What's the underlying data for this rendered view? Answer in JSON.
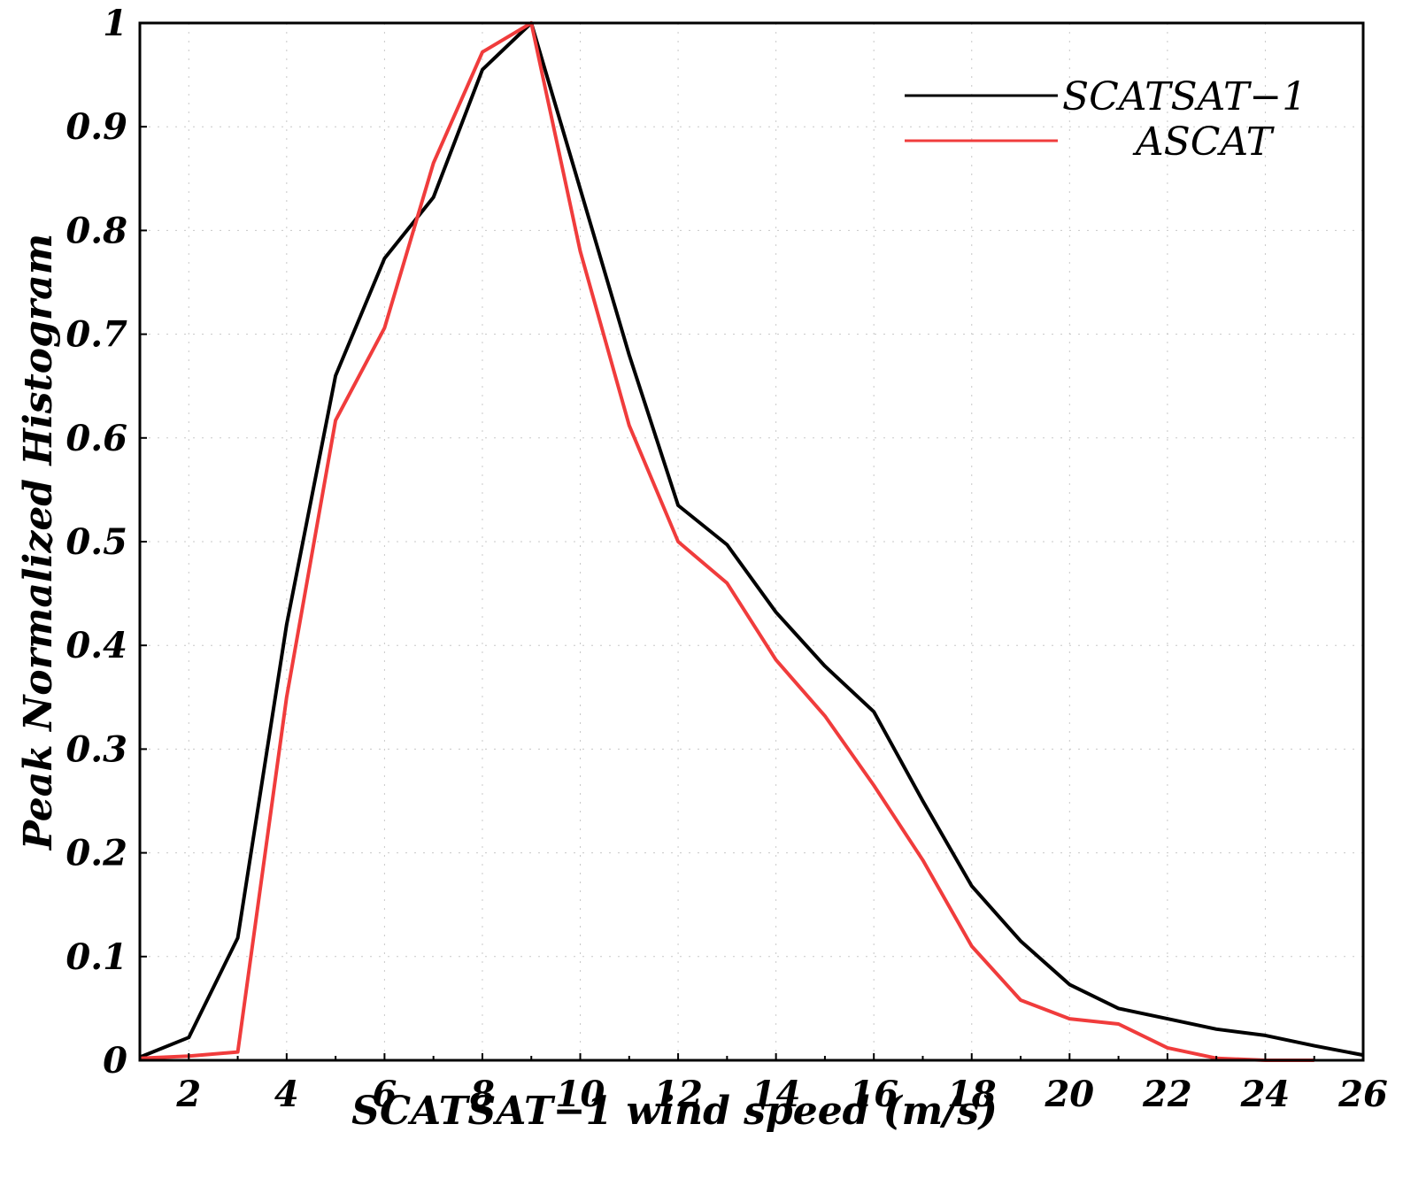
{
  "chart_data": {
    "type": "line",
    "title": "",
    "xlabel": "SCATSAT−1 wind speed (m/s)",
    "ylabel": "Peak Normalized Histogram",
    "xlim": [
      1,
      26
    ],
    "ylim": [
      0,
      1
    ],
    "x_ticks": [
      2,
      4,
      6,
      8,
      10,
      12,
      14,
      16,
      18,
      20,
      22,
      24,
      26
    ],
    "y_ticks": [
      0,
      0.1,
      0.2,
      0.3,
      0.4,
      0.5,
      0.6,
      0.7,
      0.8,
      0.9,
      1
    ],
    "y_tick_labels": [
      "0",
      "0.1",
      "0.2",
      "0.3",
      "0.4",
      "0.5",
      "0.6",
      "0.7",
      "0.8",
      "0.9",
      "1"
    ],
    "grid": true,
    "legend_position": "top-right",
    "series": [
      {
        "name": "SCATSAT−1",
        "color": "#000000",
        "x": [
          1,
          2,
          3,
          4,
          5,
          6,
          7,
          8,
          9,
          10,
          11,
          12,
          13,
          14,
          15,
          16,
          17,
          18,
          19,
          20,
          21,
          22,
          23,
          24,
          25,
          26
        ],
        "y": [
          0.003,
          0.022,
          0.118,
          0.42,
          0.66,
          0.773,
          0.832,
          0.955,
          1.0,
          0.84,
          0.68,
          0.535,
          0.497,
          0.432,
          0.38,
          0.336,
          0.25,
          0.168,
          0.115,
          0.073,
          0.05,
          0.04,
          0.03,
          0.024,
          0.014,
          0.005
        ]
      },
      {
        "name": "ASCAT",
        "color": "#f03c3c",
        "x": [
          1,
          2,
          3,
          4,
          5,
          6,
          7,
          8,
          9,
          10,
          11,
          12,
          13,
          14,
          15,
          16,
          17,
          18,
          19,
          20,
          21,
          22,
          23,
          24,
          25
        ],
        "y": [
          0.002,
          0.004,
          0.008,
          0.35,
          0.617,
          0.706,
          0.865,
          0.972,
          1.0,
          0.78,
          0.612,
          0.5,
          0.46,
          0.386,
          0.332,
          0.265,
          0.193,
          0.11,
          0.058,
          0.04,
          0.035,
          0.012,
          0.002,
          0.0,
          0.0
        ]
      }
    ]
  }
}
